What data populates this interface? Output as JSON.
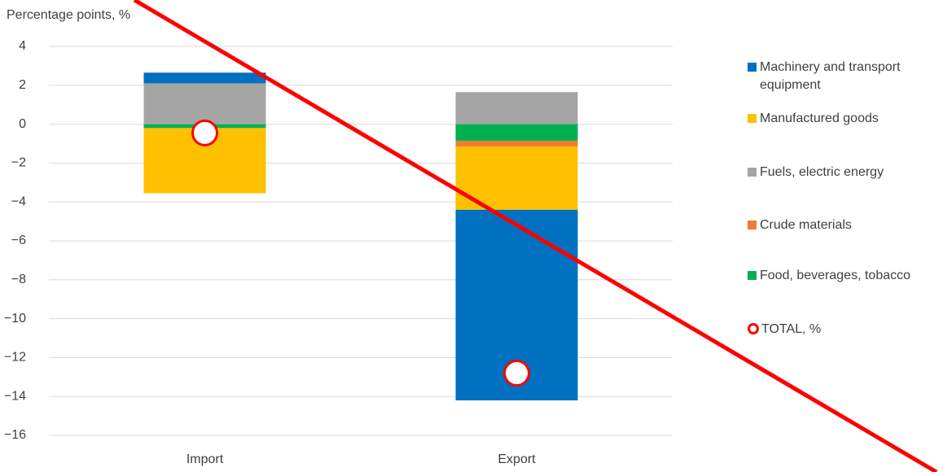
{
  "chart_data": {
    "type": "bar",
    "stacked": true,
    "y_label": "Percentage points, %",
    "categories": [
      "Import",
      "Export"
    ],
    "series": [
      {
        "name": "Machinery and transport equipment",
        "color": "#0070C0",
        "values": [
          0.55,
          -9.8
        ]
      },
      {
        "name": "Manufactured goods",
        "color": "#FFC000",
        "values": [
          -3.35,
          -3.25
        ]
      },
      {
        "name": "Fuels, electric energy",
        "color": "#A5A5A5",
        "values": [
          2.1,
          1.65
        ]
      },
      {
        "name": "Crude materials",
        "color": "#ED7D31",
        "values": [
          0,
          -0.3
        ]
      },
      {
        "name": "Food, beverages, tobacco",
        "color": "#00B050",
        "values": [
          -0.2,
          -0.85
        ]
      }
    ],
    "totals": {
      "name": "TOTAL, %",
      "color": "#FF0000",
      "values": [
        -0.45,
        -12.8
      ]
    },
    "ylim": [
      -16,
      4
    ],
    "yticks": [
      {
        "value": -16,
        "label": "−16"
      },
      {
        "value": -14,
        "label": "−14"
      },
      {
        "value": -12,
        "label": "−12"
      },
      {
        "value": -10,
        "label": "−10"
      },
      {
        "value": -8,
        "label": "−8"
      },
      {
        "value": -6,
        "label": "−6"
      },
      {
        "value": -4,
        "label": "−4"
      },
      {
        "value": -2,
        "label": "−2"
      },
      0,
      2,
      4
    ],
    "grid": true
  }
}
